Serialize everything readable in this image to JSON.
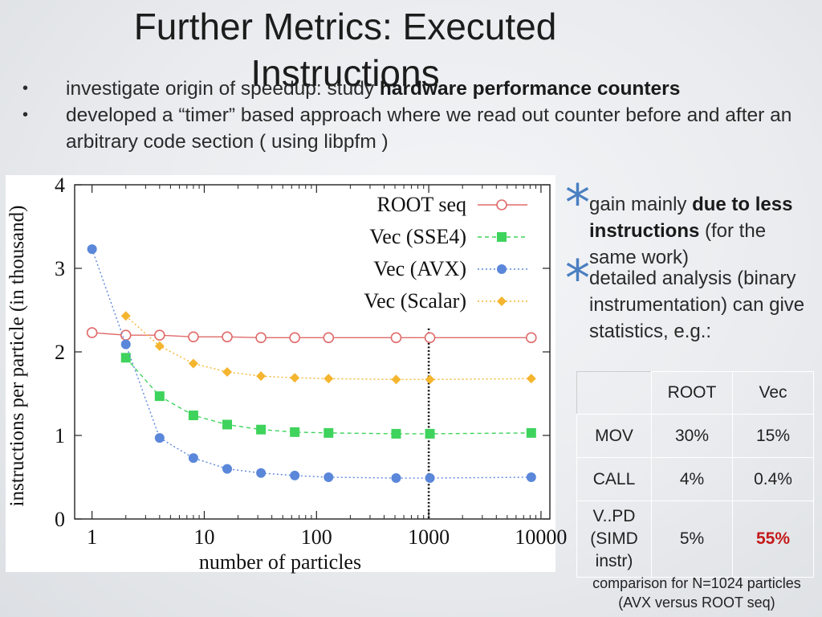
{
  "slide": {
    "title": "Further Metrics: Executed Instructions",
    "bullets": [
      {
        "dot": "•",
        "pre": "investigate origin of speedup: study ",
        "bold": "hardware performance counters",
        "post": ""
      },
      {
        "dot": "•",
        "pre": "developed a “timer” based approach where we read out counter before and after an arbitrary code section ( using libpfm )",
        "bold": "",
        "post": ""
      }
    ],
    "aside": [
      {
        "pre": "gain mainly ",
        "bold": "due to less instructions",
        "post": " (for the same work)"
      },
      {
        "pre": "detailed analysis (binary instrumentation) can give statistics, e.g.:",
        "bold": "",
        "post": ""
      }
    ],
    "table": {
      "headers": [
        "",
        "ROOT",
        "Vec"
      ],
      "rows": [
        [
          "MOV",
          "30%",
          "15%"
        ],
        [
          "CALL",
          "4%",
          "0.4%"
        ],
        [
          "V..PD (SIMD instr)",
          "5%",
          "55%"
        ]
      ]
    },
    "caption_line1": "comparison for N=1024 particles",
    "caption_line2": "(AVX versus ROOT seq)"
  },
  "icons": {
    "bullet": "bullet-dot-icon",
    "aside_marker": "asterisk-icon"
  },
  "colors": {
    "root_seq": "#e06a6a",
    "sse4": "#3ed35c",
    "avx": "#5b87da",
    "scalar": "#f4b52f",
    "highlight": "#c41a1a",
    "marker": "#4a7fc2"
  },
  "chart_data": {
    "type": "line",
    "title": "",
    "xlabel": "number of particles",
    "ylabel": "instructions per particle (in thousand)",
    "xscale": "log",
    "xlim": [
      0.7,
      12000
    ],
    "ylim": [
      0,
      4
    ],
    "xticks": [
      1,
      10,
      100,
      1000,
      10000
    ],
    "yticks": [
      0,
      1,
      2,
      3,
      4
    ],
    "grid": false,
    "legend_position": "top-right",
    "vline_x": 1000,
    "series": [
      {
        "name": "ROOT seq",
        "color": "#e06a6a",
        "style": "solid",
        "marker": "open-circle",
        "x": [
          1,
          2,
          4,
          8,
          16,
          32,
          64,
          128,
          512,
          1024,
          8192
        ],
        "y": [
          2.23,
          2.2,
          2.2,
          2.18,
          2.18,
          2.17,
          2.17,
          2.17,
          2.17,
          2.17,
          2.17
        ]
      },
      {
        "name": "Vec (SSE4)",
        "color": "#3ed35c",
        "style": "dashed",
        "marker": "square",
        "x": [
          2,
          4,
          8,
          16,
          32,
          64,
          128,
          512,
          1024,
          8192
        ],
        "y": [
          1.93,
          1.47,
          1.24,
          1.13,
          1.07,
          1.04,
          1.03,
          1.02,
          1.02,
          1.03
        ]
      },
      {
        "name": "Vec (AVX)",
        "color": "#5b87da",
        "style": "dotted",
        "marker": "circle",
        "x": [
          1,
          2,
          4,
          8,
          16,
          32,
          64,
          128,
          512,
          1024,
          8192
        ],
        "y": [
          3.23,
          2.09,
          0.97,
          0.73,
          0.6,
          0.55,
          0.52,
          0.5,
          0.49,
          0.49,
          0.5
        ]
      },
      {
        "name": "Vec (Scalar)",
        "color": "#f4b52f",
        "style": "dotted",
        "marker": "diamond",
        "x": [
          2,
          4,
          8,
          16,
          32,
          64,
          128,
          512,
          1024,
          8192
        ],
        "y": [
          2.43,
          2.07,
          1.86,
          1.76,
          1.71,
          1.69,
          1.68,
          1.67,
          1.67,
          1.68
        ]
      }
    ]
  }
}
